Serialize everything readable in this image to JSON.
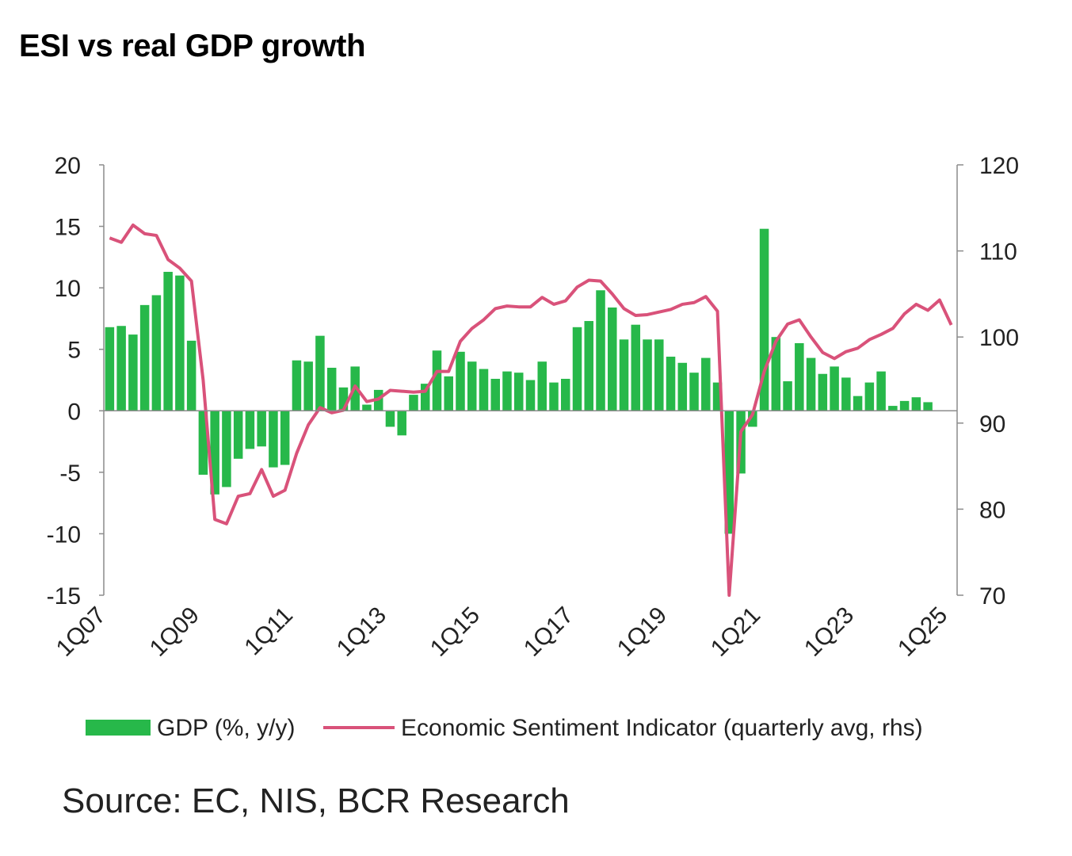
{
  "chart_title": "ESI vs real GDP growth",
  "source": "Source: EC, NIS, BCR Research",
  "colors": {
    "gdp_bar": "#27b84a",
    "esi_line": "#d9527a",
    "axis": "#8c8c8c"
  },
  "chart_data": {
    "type": "bar",
    "title": "ESI vs real GDP growth",
    "x_tick_labels": [
      "1Q07",
      "1Q09",
      "1Q11",
      "1Q13",
      "1Q15",
      "1Q17",
      "1Q19",
      "1Q21",
      "1Q23",
      "1Q25"
    ],
    "y_left": {
      "ylim": [
        -15,
        20
      ],
      "ticks": [
        "20",
        "15",
        "10",
        "5",
        "0",
        "-5",
        "-10",
        "-15"
      ]
    },
    "y_right": {
      "ylim": [
        70,
        120
      ],
      "ticks": [
        "120",
        "110",
        "100",
        "90",
        "80",
        "70"
      ]
    },
    "legend": {
      "placement": "bottom"
    },
    "categories": [
      "1Q07",
      "2Q07",
      "3Q07",
      "4Q07",
      "1Q08",
      "2Q08",
      "3Q08",
      "4Q08",
      "1Q09",
      "2Q09",
      "3Q09",
      "4Q09",
      "1Q10",
      "2Q10",
      "3Q10",
      "4Q10",
      "1Q11",
      "2Q11",
      "3Q11",
      "4Q11",
      "1Q12",
      "2Q12",
      "3Q12",
      "4Q12",
      "1Q13",
      "2Q13",
      "3Q13",
      "4Q13",
      "1Q14",
      "2Q14",
      "3Q14",
      "4Q14",
      "1Q15",
      "2Q15",
      "3Q15",
      "4Q15",
      "1Q16",
      "2Q16",
      "3Q16",
      "4Q16",
      "1Q17",
      "2Q17",
      "3Q17",
      "4Q17",
      "1Q18",
      "2Q18",
      "3Q18",
      "4Q18",
      "1Q19",
      "2Q19",
      "3Q19",
      "4Q19",
      "1Q20",
      "2Q20",
      "3Q20",
      "4Q20",
      "1Q21",
      "2Q21",
      "3Q21",
      "4Q21",
      "1Q22",
      "2Q22",
      "3Q22",
      "4Q22",
      "1Q23",
      "2Q23",
      "3Q23",
      "4Q23",
      "1Q24",
      "2Q24",
      "3Q24",
      "4Q24",
      "1Q25"
    ],
    "series": [
      {
        "name": "GDP (%, y/y)",
        "type": "bar",
        "axis": "left",
        "values": [
          6.8,
          6.9,
          6.2,
          8.6,
          9.4,
          11.3,
          11.0,
          5.7,
          -5.2,
          -6.8,
          -6.2,
          -3.9,
          -3.1,
          -2.9,
          -4.6,
          -4.4,
          4.1,
          4.0,
          6.1,
          3.5,
          1.9,
          3.6,
          0.5,
          1.7,
          -1.3,
          -2.0,
          1.3,
          2.2,
          4.9,
          2.8,
          4.8,
          4.0,
          3.4,
          2.6,
          3.2,
          3.1,
          2.5,
          4.0,
          2.3,
          2.6,
          6.8,
          7.3,
          9.8,
          8.4,
          5.8,
          7.0,
          5.8,
          5.8,
          4.4,
          3.9,
          3.1,
          4.3,
          2.3,
          -10.0,
          -5.1,
          -1.3,
          14.8,
          6.0,
          2.4,
          5.5,
          4.3,
          3.0,
          3.6,
          2.7,
          1.2,
          2.3,
          3.2,
          0.4,
          0.8,
          1.1,
          0.7,
          null,
          null
        ]
      },
      {
        "name": "Economic Sentiment Indicator (quarterly avg, rhs)",
        "type": "line",
        "axis": "right",
        "values": [
          111.5,
          111,
          113,
          112,
          111.8,
          109,
          108,
          106.5,
          95,
          78.8,
          78.3,
          81.5,
          81.8,
          84.6,
          81.5,
          82.2,
          86.5,
          89.8,
          91.8,
          91.2,
          91.5,
          94.3,
          92.5,
          92.8,
          93.8,
          93.7,
          93.6,
          93.7,
          96,
          96,
          99.5,
          101,
          102,
          103.3,
          103.6,
          103.5,
          103.5,
          104.6,
          103.8,
          104.2,
          105.8,
          106.6,
          106.5,
          105,
          103.3,
          102.5,
          102.6,
          102.9,
          103.2,
          103.8,
          104,
          104.7,
          103,
          70,
          89,
          91,
          96,
          99.5,
          101.5,
          102,
          100,
          98.2,
          97.5,
          98.3,
          98.7,
          99.7,
          100.3,
          101,
          102.7,
          103.8,
          103.1,
          104.3,
          101.4
        ]
      }
    ]
  }
}
